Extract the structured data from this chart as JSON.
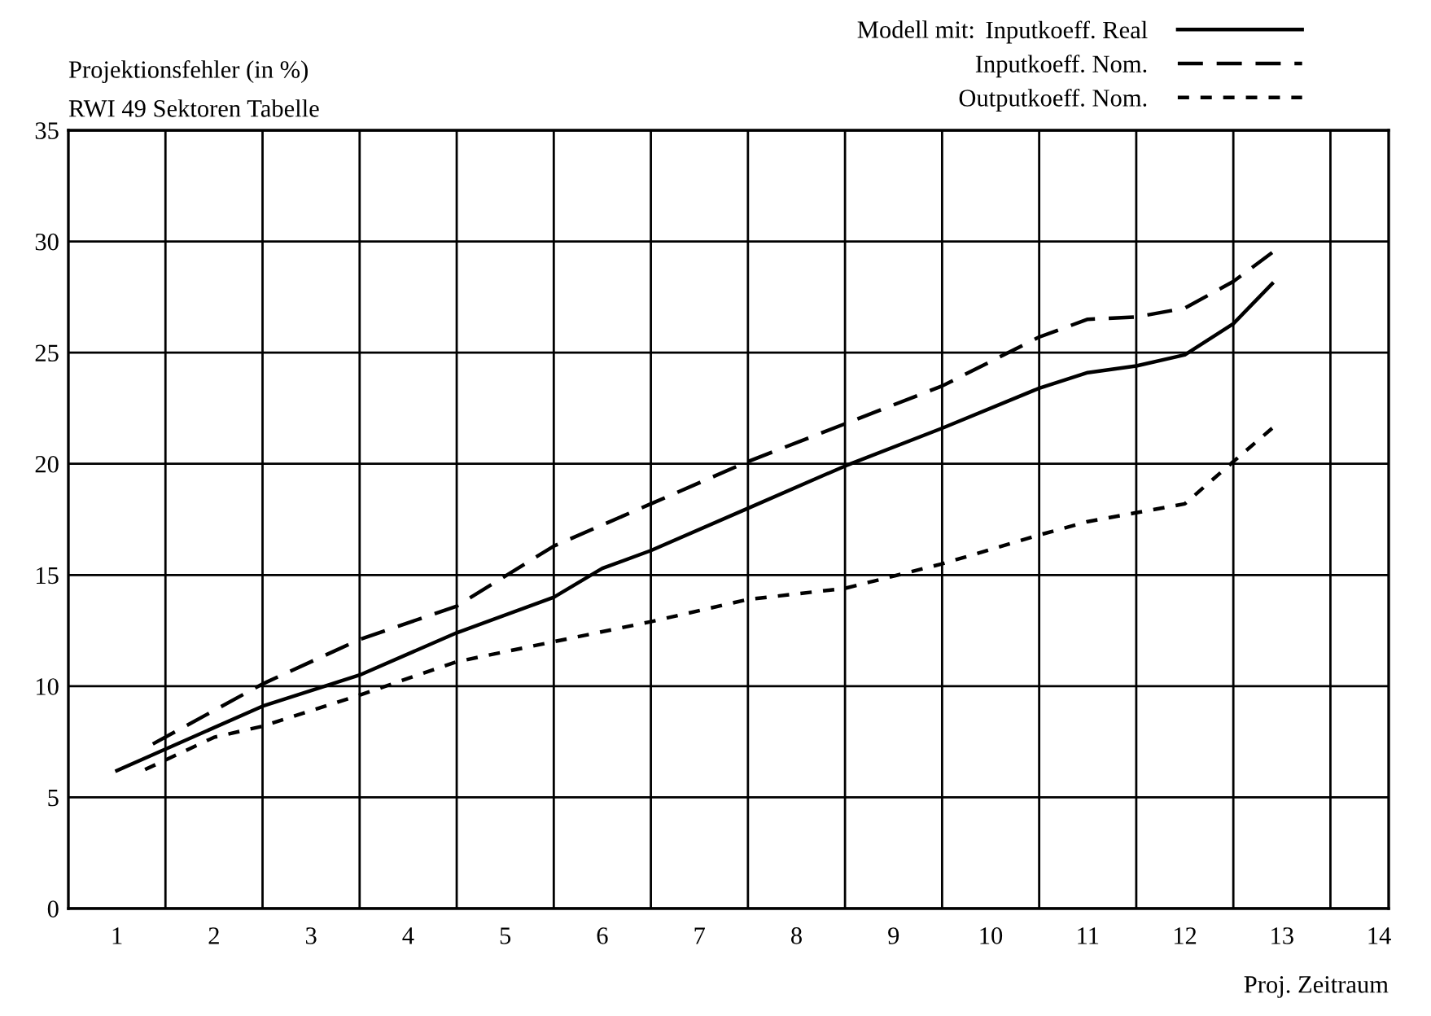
{
  "chart_data": {
    "type": "line",
    "title": "Projektionsfehler (in %)",
    "subtitle": "RWI 49 Sektoren Tabelle",
    "xlabel": "Proj. Zeitraum",
    "legend_title": "Modell mit:",
    "xlim": [
      0.5,
      14.1
    ],
    "xticks": [
      1,
      2,
      3,
      4,
      5,
      6,
      7,
      8,
      9,
      10,
      11,
      12,
      13,
      14,
      {
        "value": 1.5,
        "label": null
      },
      {
        "value": 2.5,
        "label": null
      },
      {
        "value": 3.5,
        "label": null
      },
      {
        "value": 4.5,
        "label": null
      },
      {
        "value": 5.5,
        "label": null
      },
      {
        "value": 6.5,
        "label": null
      },
      {
        "value": 7.5,
        "label": null
      },
      {
        "value": 8.5,
        "label": null
      },
      {
        "value": 9.5,
        "label": null
      },
      {
        "value": 10.5,
        "label": null
      },
      {
        "value": 11.5,
        "label": null
      },
      {
        "value": 12.5,
        "label": null
      },
      {
        "value": 13.5,
        "label": null
      }
    ],
    "ylim": [
      0,
      35
    ],
    "yticks": [
      0,
      5,
      10,
      15,
      20,
      25,
      30,
      35
    ],
    "grid": true,
    "legend": "top right",
    "series": [
      {
        "name": "Inputkoeff. Real",
        "color": "#000000",
        "line_style": "solid",
        "x": [
          1.0,
          2.5,
          3.5,
          4.5,
          5.5,
          6.0,
          6.5,
          7.5,
          8.5,
          9.5,
          10.5,
          11.0,
          11.5,
          12.0,
          12.5,
          12.9
        ],
        "values": [
          6.2,
          9.1,
          10.5,
          12.4,
          14.0,
          15.3,
          16.1,
          18.0,
          19.9,
          21.6,
          23.4,
          24.1,
          24.4,
          24.9,
          26.3,
          28.1
        ]
      },
      {
        "name": "Inputkoeff. Nom.",
        "color": "#000000",
        "line_style": "dashed",
        "x": [
          1.37,
          2.5,
          3.5,
          4.5,
          5.5,
          6.5,
          7.5,
          8.5,
          9.5,
          10.0,
          10.5,
          11.0,
          11.5,
          12.0,
          12.5,
          12.9
        ],
        "values": [
          7.4,
          10.1,
          12.1,
          13.6,
          16.3,
          18.2,
          20.1,
          21.8,
          23.5,
          24.6,
          25.7,
          26.5,
          26.6,
          27.0,
          28.2,
          29.5
        ]
      },
      {
        "name": "Outputkoeff. Nom.",
        "color": "#000000",
        "line_style": "dotted",
        "x": [
          1.29,
          2.0,
          2.5,
          3.5,
          4.5,
          5.5,
          6.5,
          7.5,
          8.5,
          9.5,
          10.5,
          11.0,
          11.5,
          12.0,
          12.5,
          12.9
        ],
        "values": [
          6.25,
          7.7,
          8.2,
          9.6,
          11.1,
          12.0,
          12.9,
          13.9,
          14.4,
          15.5,
          16.8,
          17.4,
          17.8,
          18.2,
          20.1,
          21.6
        ]
      }
    ]
  }
}
